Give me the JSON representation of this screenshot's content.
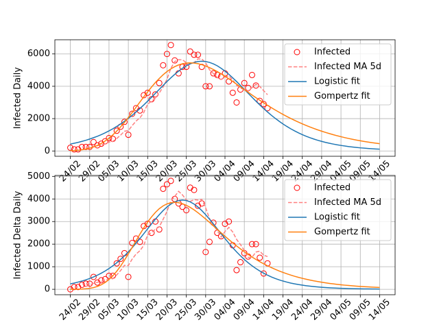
{
  "chart_data": [
    {
      "type": "line",
      "ylabel": "Infected Daily",
      "grid": true,
      "legend": "upper right",
      "x": [
        "24/02",
        "25/02",
        "26/02",
        "27/02",
        "28/02",
        "29/02",
        "01/03",
        "02/03",
        "03/03",
        "04/03",
        "05/03",
        "06/03",
        "07/03",
        "08/03",
        "09/03",
        "10/03",
        "11/03",
        "12/03",
        "13/03",
        "14/03",
        "15/03",
        "16/03",
        "17/03",
        "18/03",
        "19/03",
        "20/03",
        "21/03",
        "22/03",
        "23/03",
        "24/03",
        "25/03",
        "26/03",
        "27/03",
        "28/03",
        "29/03",
        "30/03",
        "31/03",
        "01/04",
        "02/04",
        "03/04",
        "04/04",
        "05/04",
        "06/04",
        "07/04",
        "08/04",
        "09/04",
        "10/04",
        "11/04",
        "12/04",
        "13/04",
        "14/04",
        "15/04",
        "16/04",
        "17/04",
        "18/04",
        "19/04",
        "20/04",
        "21/04",
        "22/04",
        "23/04",
        "24/04",
        "25/04",
        "26/04",
        "27/04",
        "28/04",
        "29/04",
        "30/04",
        "01/05",
        "02/05",
        "03/05",
        "04/05",
        "05/05",
        "06/05",
        "07/05",
        "08/05",
        "09/05",
        "10/05",
        "11/05",
        "12/05",
        "13/05",
        "14/05"
      ],
      "xticks": [
        "24/02",
        "29/02",
        "05/03",
        "10/03",
        "15/03",
        "20/03",
        "25/03",
        "30/03",
        "04/04",
        "09/04",
        "14/04",
        "19/04",
        "24/04",
        "29/04",
        "04/05",
        "09/05",
        "14/05"
      ],
      "ylim": [
        -328,
        6878
      ],
      "yticks": [
        0,
        2000,
        4000,
        6000
      ],
      "series": [
        {
          "name": "Infected",
          "color": "#ff0000",
          "style": "marker",
          "values": [
            200,
            100,
            100,
            250,
            250,
            250,
            550,
            350,
            450,
            600,
            800,
            750,
            1250,
            1500,
            1800,
            1000,
            2300,
            2650,
            2500,
            3450,
            3600,
            3200,
            3500,
            4200,
            5300,
            6000,
            6550,
            5600,
            4800,
            5200,
            5200,
            6150,
            5950,
            5950,
            5200,
            4000,
            4000,
            4800,
            4700,
            4600,
            4800,
            4300,
            3600,
            3000,
            3800,
            4200,
            3900,
            4700,
            4050,
            3100,
            2900,
            2650,
            null,
            null,
            null,
            null,
            null,
            null,
            null,
            null,
            null,
            null,
            null,
            null,
            null,
            null,
            null,
            null,
            null,
            null,
            null,
            null,
            null,
            null,
            null,
            null,
            null,
            null,
            null,
            null,
            null
          ]
        },
        {
          "name": "Infected MA 5d",
          "color": "#ff7f7f",
          "style": "dashed",
          "values": [
            null,
            null,
            null,
            null,
            180,
            190,
            280,
            330,
            370,
            440,
            550,
            590,
            770,
            980,
            1220,
            1260,
            1570,
            1850,
            2050,
            2380,
            2900,
            3080,
            3250,
            3590,
            3960,
            4440,
            5110,
            5530,
            5650,
            5630,
            5470,
            5390,
            5460,
            5690,
            5690,
            5450,
            5020,
            4790,
            4540,
            4420,
            4580,
            4640,
            4400,
            4060,
            3900,
            3780,
            3700,
            3920,
            4130,
            3990,
            3730,
            3480,
            null,
            null,
            null,
            null,
            null,
            null,
            null,
            null,
            null,
            null,
            null,
            null,
            null,
            null,
            null,
            null,
            null,
            null,
            null,
            null,
            null,
            null,
            null,
            null,
            null,
            null,
            null,
            null,
            null
          ]
        },
        {
          "name": "Logistic fit",
          "color": "#1f77b4",
          "style": "line",
          "values": [
            427,
            478,
            532,
            594,
            661,
            737,
            821,
            911,
            1012,
            1122,
            1243,
            1374,
            1518,
            1672,
            1839,
            2018,
            2209,
            2411,
            2625,
            2850,
            3082,
            3321,
            3566,
            3811,
            4055,
            4294,
            4523,
            4740,
            4938,
            5115,
            5267,
            5388,
            5477,
            5532,
            5550,
            5532,
            5477,
            5388,
            5267,
            5115,
            4938,
            4740,
            4523,
            4294,
            4055,
            3811,
            3566,
            3321,
            3082,
            2850,
            2625,
            2411,
            2209,
            2018,
            1839,
            1672,
            1518,
            1374,
            1243,
            1122,
            1012,
            911,
            821,
            737,
            661,
            594,
            532,
            478,
            427,
            381,
            342,
            306,
            273,
            245,
            218,
            194,
            175,
            155,
            138,
            123,
            110
          ]
        },
        {
          "name": "Gompertz fit",
          "color": "#ff7f0e",
          "style": "line",
          "values": [
            17,
            29,
            49,
            77,
            117,
            174,
            247,
            344,
            468,
            614,
            794,
            999,
            1232,
            1489,
            1764,
            2069,
            2381,
            2703,
            3028,
            3350,
            3657,
            3953,
            4232,
            4484,
            4713,
            4912,
            5078,
            5215,
            5320,
            5393,
            5436,
            5450,
            5437,
            5398,
            5337,
            5255,
            5155,
            5039,
            4909,
            4768,
            4618,
            4461,
            4299,
            4133,
            3966,
            3797,
            3629,
            3461,
            3297,
            3136,
            2978,
            2825,
            2676,
            2532,
            2394,
            2261,
            2133,
            2010,
            1894,
            1782,
            1676,
            1576,
            1480,
            1390,
            1304,
            1224,
            1147,
            1075,
            1007,
            942,
            883,
            825,
            772,
            722,
            675,
            632,
            590,
            552,
            514,
            481,
            450
          ]
        }
      ]
    },
    {
      "type": "line",
      "ylabel": "Infected Delta Daily",
      "grid": true,
      "legend": "upper right",
      "x": [
        "24/02",
        "25/02",
        "26/02",
        "27/02",
        "28/02",
        "29/02",
        "01/03",
        "02/03",
        "03/03",
        "04/03",
        "05/03",
        "06/03",
        "07/03",
        "08/03",
        "09/03",
        "10/03",
        "11/03",
        "12/03",
        "13/03",
        "14/03",
        "15/03",
        "16/03",
        "17/03",
        "18/03",
        "19/03",
        "20/03",
        "21/03",
        "22/03",
        "23/03",
        "24/03",
        "25/03",
        "26/03",
        "27/03",
        "28/03",
        "29/03",
        "30/03",
        "31/03",
        "01/04",
        "02/04",
        "03/04",
        "04/04",
        "05/04",
        "06/04",
        "07/04",
        "08/04",
        "09/04",
        "10/04",
        "11/04",
        "12/04",
        "13/04",
        "14/04",
        "15/04",
        "16/04",
        "17/04",
        "18/04",
        "19/04",
        "20/04",
        "21/04",
        "22/04",
        "23/04",
        "24/04",
        "25/04",
        "26/04",
        "27/04",
        "28/04",
        "29/04",
        "30/04",
        "01/05",
        "02/05",
        "03/05",
        "04/05",
        "05/05",
        "06/05",
        "07/05",
        "08/05",
        "09/05",
        "10/05",
        "11/05",
        "12/05",
        "13/05",
        "14/05"
      ],
      "xticks": [
        "24/02",
        "29/02",
        "05/03",
        "10/03",
        "15/03",
        "20/03",
        "25/03",
        "30/03",
        "04/04",
        "09/04",
        "14/04",
        "19/04",
        "24/04",
        "29/04",
        "04/05",
        "09/05",
        "14/05"
      ],
      "ylim": [
        -240,
        5040
      ],
      "yticks": [
        0,
        1000,
        2000,
        3000,
        4000,
        5000
      ],
      "series": [
        {
          "name": "Infected",
          "color": "#ff0000",
          "style": "marker",
          "values": [
            0,
            100,
            100,
            200,
            250,
            250,
            550,
            300,
            400,
            450,
            600,
            600,
            1150,
            1350,
            1600,
            550,
            2050,
            2250,
            2100,
            2800,
            2900,
            2500,
            3000,
            2650,
            4450,
            4650,
            4800,
            4000,
            3800,
            3650,
            3500,
            4500,
            4400,
            3700,
            3800,
            1650,
            2100,
            2950,
            2500,
            2350,
            2900,
            3000,
            1950,
            850,
            1200,
            1600,
            1450,
            2000,
            2000,
            1400,
            700,
            1150,
            null,
            null,
            null,
            null,
            null,
            null,
            null,
            null,
            null,
            null,
            null,
            null,
            null,
            null,
            null,
            null,
            null,
            null,
            null,
            null,
            null,
            null,
            null,
            null,
            null,
            null,
            null,
            null,
            null
          ]
        },
        {
          "name": "Infected MA 5d",
          "color": "#ff7f7f",
          "style": "dashed",
          "values": [
            null,
            null,
            null,
            null,
            130,
            180,
            270,
            310,
            350,
            390,
            460,
            470,
            640,
            830,
            1060,
            1050,
            1340,
            1560,
            1710,
            1950,
            2420,
            2510,
            2660,
            2770,
            3100,
            3450,
            3910,
            4110,
            4340,
            4180,
            3950,
            3890,
            3970,
            3950,
            3980,
            3610,
            3130,
            2840,
            2600,
            2310,
            2560,
            2740,
            2540,
            2210,
            1980,
            1720,
            1410,
            1420,
            1650,
            1690,
            1510,
            1450,
            null,
            null,
            null,
            null,
            null,
            null,
            null,
            null,
            null,
            null,
            null,
            null,
            null,
            null,
            null,
            null,
            null,
            null,
            null,
            null,
            null,
            null,
            null,
            null,
            null,
            null,
            null,
            null,
            null
          ]
        },
        {
          "name": "Logistic fit",
          "color": "#1f77b4",
          "style": "line",
          "values": [
            242,
            277,
            320,
            366,
            419,
            479,
            548,
            625,
            713,
            810,
            919,
            1041,
            1175,
            1322,
            1483,
            1657,
            1844,
            2042,
            2248,
            2462,
            2679,
            2895,
            3105,
            3304,
            3486,
            3644,
            3774,
            3870,
            3930,
            3950,
            3930,
            3870,
            3774,
            3644,
            3486,
            3304,
            3105,
            2895,
            2679,
            2462,
            2248,
            2042,
            1844,
            1657,
            1483,
            1322,
            1175,
            1041,
            919,
            810,
            713,
            625,
            548,
            479,
            419,
            366,
            320,
            277,
            242,
            211,
            184,
            160,
            138,
            120,
            104,
            90,
            78,
            69,
            60,
            52,
            44,
            39,
            33,
            30,
            25,
            22,
            19,
            16,
            14,
            13,
            11
          ]
        },
        {
          "name": "Gompertz fit",
          "color": "#ff7f0e",
          "style": "line",
          "values": [
            1,
            2,
            5,
            12,
            24,
            44,
            77,
            128,
            201,
            302,
            434,
            599,
            799,
            1029,
            1287,
            1565,
            1856,
            2151,
            2444,
            2721,
            2978,
            3207,
            3406,
            3568,
            3693,
            3782,
            3833,
            3850,
            3834,
            3790,
            3720,
            3627,
            3518,
            3392,
            3256,
            3112,
            2962,
            2808,
            2654,
            2501,
            2350,
            2202,
            2059,
            1921,
            1789,
            1662,
            1543,
            1430,
            1323,
            1223,
            1129,
            1042,
            960,
            884,
            814,
            748,
            687,
            631,
            578,
            531,
            486,
            447,
            409,
            374,
            343,
            313,
            287,
            262,
            240,
            219,
            201,
            183,
            168,
            154,
            140,
            128,
            117,
            107,
            97,
            89,
            81
          ]
        }
      ]
    }
  ]
}
